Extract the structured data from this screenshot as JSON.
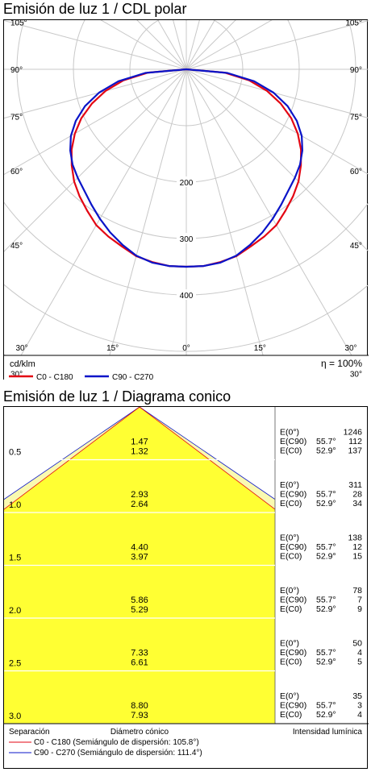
{
  "polar": {
    "title": "Emisión de luz 1 / CDL polar",
    "unit": "cd/klm",
    "efficiency": "η = 100%",
    "legend": [
      {
        "label": "C0 - C180",
        "color": "#e30613"
      },
      {
        "label": "C90 - C270",
        "color": "#0a14c8"
      }
    ]
  },
  "cone": {
    "title": "Emisión de luz 1 / Diagrama conico",
    "footer": {
      "separation_label": "Separación",
      "diameter_label": "Diámetro cónico",
      "intensity_label": "Intensidad lumínica",
      "legend": [
        {
          "label": "C0 - C180 (Semiángulo de dispersión: 105.8°)",
          "color": "#e30613"
        },
        {
          "label": "C90 - C270 (Semiángulo de dispersión: 111.4°)",
          "color": "#0a14c8"
        }
      ]
    }
  },
  "chart_data": [
    {
      "type": "polar",
      "title": "Emisión de luz 1 / CDL polar",
      "unit": "cd/klm",
      "radial_ticks": [
        "200",
        "300",
        "400"
      ],
      "radial_tick_values": [
        200,
        300,
        400
      ],
      "radial_max": 500,
      "angle_labels_left": [
        "105°",
        "90°",
        "75°",
        "60°",
        "45°",
        "30°"
      ],
      "angle_labels_right": [
        "105°",
        "90°",
        "75°",
        "60°",
        "45°",
        "30°"
      ],
      "angle_labels_bottom": [
        "30°",
        "15°",
        "0°",
        "15°",
        "30°"
      ],
      "series": [
        {
          "name": "C0 - C180",
          "color": "#e30613",
          "angles": [
            0,
            5,
            10,
            15,
            20,
            25,
            30,
            35,
            40,
            45,
            50,
            55,
            60,
            65,
            70,
            75,
            80,
            85,
            90
          ],
          "values": [
            350,
            350,
            347,
            343,
            334,
            327,
            319,
            306,
            294,
            281,
            265,
            248,
            228,
            205,
            178,
            148,
            113,
            68,
            0
          ]
        },
        {
          "name": "C90 - C270",
          "color": "#0a14c8",
          "angles": [
            0,
            5,
            10,
            15,
            20,
            25,
            30,
            35,
            40,
            45,
            50,
            55,
            60,
            65,
            70,
            75,
            80,
            85,
            90
          ],
          "values": [
            350,
            350,
            348,
            342,
            331,
            319,
            306,
            293,
            281,
            272,
            263,
            251,
            236,
            216,
            191,
            160,
            122,
            73,
            0
          ]
        }
      ]
    },
    {
      "type": "table",
      "title": "Emisión de luz 1 / Diagrama conico",
      "columns": [
        "Separación",
        "Diámetro cónico",
        "Intensidad lumínica"
      ],
      "half_angles": {
        "C0 - C180": 52.9,
        "C90 - C270": 55.7
      },
      "rows": [
        {
          "separation": "0.5",
          "diam_c90": "1.47",
          "diam_c0": "1.32",
          "e0": "1246",
          "angle_c90": "55.7°",
          "e_c90": "112",
          "angle_c0": "52.9°",
          "e_c0": "137"
        },
        {
          "separation": "1.0",
          "diam_c90": "2.93",
          "diam_c0": "2.64",
          "e0": "311",
          "angle_c90": "55.7°",
          "e_c90": "28",
          "angle_c0": "52.9°",
          "e_c0": "34"
        },
        {
          "separation": "1.5",
          "diam_c90": "4.40",
          "diam_c0": "3.97",
          "e0": "138",
          "angle_c90": "55.7°",
          "e_c90": "12",
          "angle_c0": "52.9°",
          "e_c0": "15"
        },
        {
          "separation": "2.0",
          "diam_c90": "5.86",
          "diam_c0": "5.29",
          "e0": "78",
          "angle_c90": "55.7°",
          "e_c90": "7",
          "angle_c0": "52.9°",
          "e_c0": "9"
        },
        {
          "separation": "2.5",
          "diam_c90": "7.33",
          "diam_c0": "6.61",
          "e0": "50",
          "angle_c90": "55.7°",
          "e_c90": "4",
          "angle_c0": "52.9°",
          "e_c0": "5"
        },
        {
          "separation": "3.0",
          "diam_c90": "8.80",
          "diam_c0": "7.93",
          "e0": "35",
          "angle_c90": "55.7°",
          "e_c90": "3",
          "angle_c0": "52.9°",
          "e_c0": "4"
        }
      ],
      "labels": {
        "e0": "E(0°)",
        "e_c90": "E(C90)",
        "e_c0": "E(C0)"
      }
    }
  ]
}
